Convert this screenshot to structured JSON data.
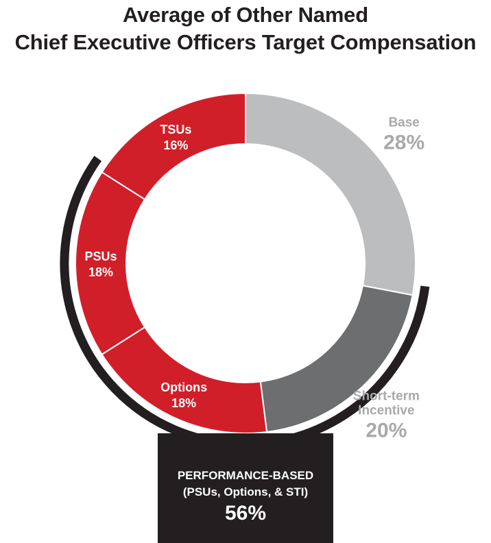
{
  "colors": {
    "red": "#d11f2a",
    "light_gray": "#bcbdbf",
    "dark_gray": "#6d6e70",
    "black": "#231f20",
    "label_gray": "#a8a9ab",
    "white": "#ffffff"
  },
  "chart_data": {
    "type": "pie",
    "variant": "donut",
    "title_line1": "Average of Other Named",
    "title_line2": "Chief Executive Officers Target Compensation",
    "slices": [
      {
        "name": "Base",
        "value": 28,
        "label": "28%",
        "color": "#bcbdbf",
        "label_color": "#a8a9ab",
        "label_inside": false
      },
      {
        "name": "Short-term Incentive",
        "name_lines": [
          "Short-term",
          "Incentive"
        ],
        "value": 20,
        "label": "20%",
        "color": "#6d6e70",
        "label_color": "#a8a9ab",
        "label_inside": false
      },
      {
        "name": "Options",
        "value": 18,
        "label": "18%",
        "color": "#d11f2a",
        "label_color": "#ffffff",
        "label_inside": true
      },
      {
        "name": "PSUs",
        "value": 18,
        "label": "18%",
        "color": "#d11f2a",
        "label_color": "#ffffff",
        "label_inside": true
      },
      {
        "name": "TSUs",
        "value": 16,
        "label": "16%",
        "color": "#d11f2a",
        "label_color": "#ffffff",
        "label_inside": true
      }
    ],
    "bracket": {
      "line1": "PERFORMANCE-BASED",
      "line2": "(PSUs, Options, & STI)",
      "value": "56%",
      "covers": [
        "Short-term Incentive",
        "Options",
        "PSUs"
      ]
    }
  }
}
